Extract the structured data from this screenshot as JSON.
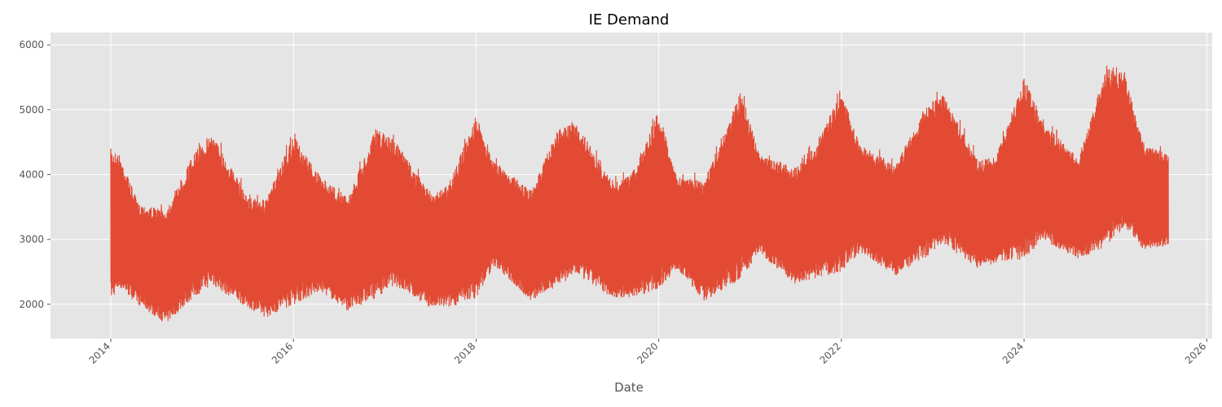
{
  "chart_data": {
    "type": "line",
    "title": "IE Demand",
    "xlabel": "Date",
    "ylabel": "",
    "xlim": [
      2013.34,
      2026.06
    ],
    "ylim": [
      1470,
      6190
    ],
    "x_ticks": [
      "2014",
      "2016",
      "2018",
      "2020",
      "2022",
      "2024",
      "2026"
    ],
    "y_ticks": [
      "2000",
      "3000",
      "4000",
      "5000",
      "6000"
    ],
    "grid": true,
    "legend": "none",
    "style": {
      "background": "#e5e5e5",
      "grid_color": "#ffffff",
      "line_color": "#e24a33"
    },
    "series": [
      {
        "x": [
          2014.0,
          2014.1,
          2014.3,
          2014.6,
          2014.9,
          2015.1,
          2015.5,
          2015.7,
          2016.0,
          2016.3,
          2016.6,
          2016.9,
          2017.1,
          2017.5,
          2017.7,
          2018.0,
          2018.2,
          2018.6,
          2018.9,
          2019.1,
          2019.5,
          2019.7,
          2020.0,
          2020.2,
          2020.5,
          2020.9,
          2021.1,
          2021.5,
          2021.7,
          2022.0,
          2022.2,
          2022.6,
          2022.9,
          2023.1,
          2023.5,
          2023.7,
          2024.0,
          2024.2,
          2024.6,
          2024.9,
          2025.1,
          2025.3,
          2025.58
        ],
        "max": [
          4400,
          4300,
          3550,
          3450,
          4300,
          4650,
          3650,
          3600,
          4600,
          3950,
          3650,
          4700,
          4550,
          3700,
          3850,
          4900,
          4200,
          3750,
          4700,
          4800,
          3850,
          4000,
          5000,
          3950,
          3900,
          5300,
          4300,
          4100,
          4400,
          5300,
          4450,
          4150,
          5000,
          5250,
          4200,
          4300,
          5500,
          4800,
          4250,
          5650,
          5550,
          4500,
          4300
        ],
        "min": [
          2080,
          2250,
          2000,
          1700,
          2100,
          2300,
          1950,
          1800,
          2000,
          2200,
          1900,
          2100,
          2300,
          1950,
          1950,
          2100,
          2600,
          2050,
          2300,
          2450,
          2100,
          2100,
          2250,
          2550,
          2050,
          2400,
          2800,
          2300,
          2400,
          2500,
          2800,
          2450,
          2700,
          2950,
          2550,
          2650,
          2700,
          3000,
          2700,
          2900,
          3200,
          2850,
          2900
        ]
      }
    ]
  }
}
